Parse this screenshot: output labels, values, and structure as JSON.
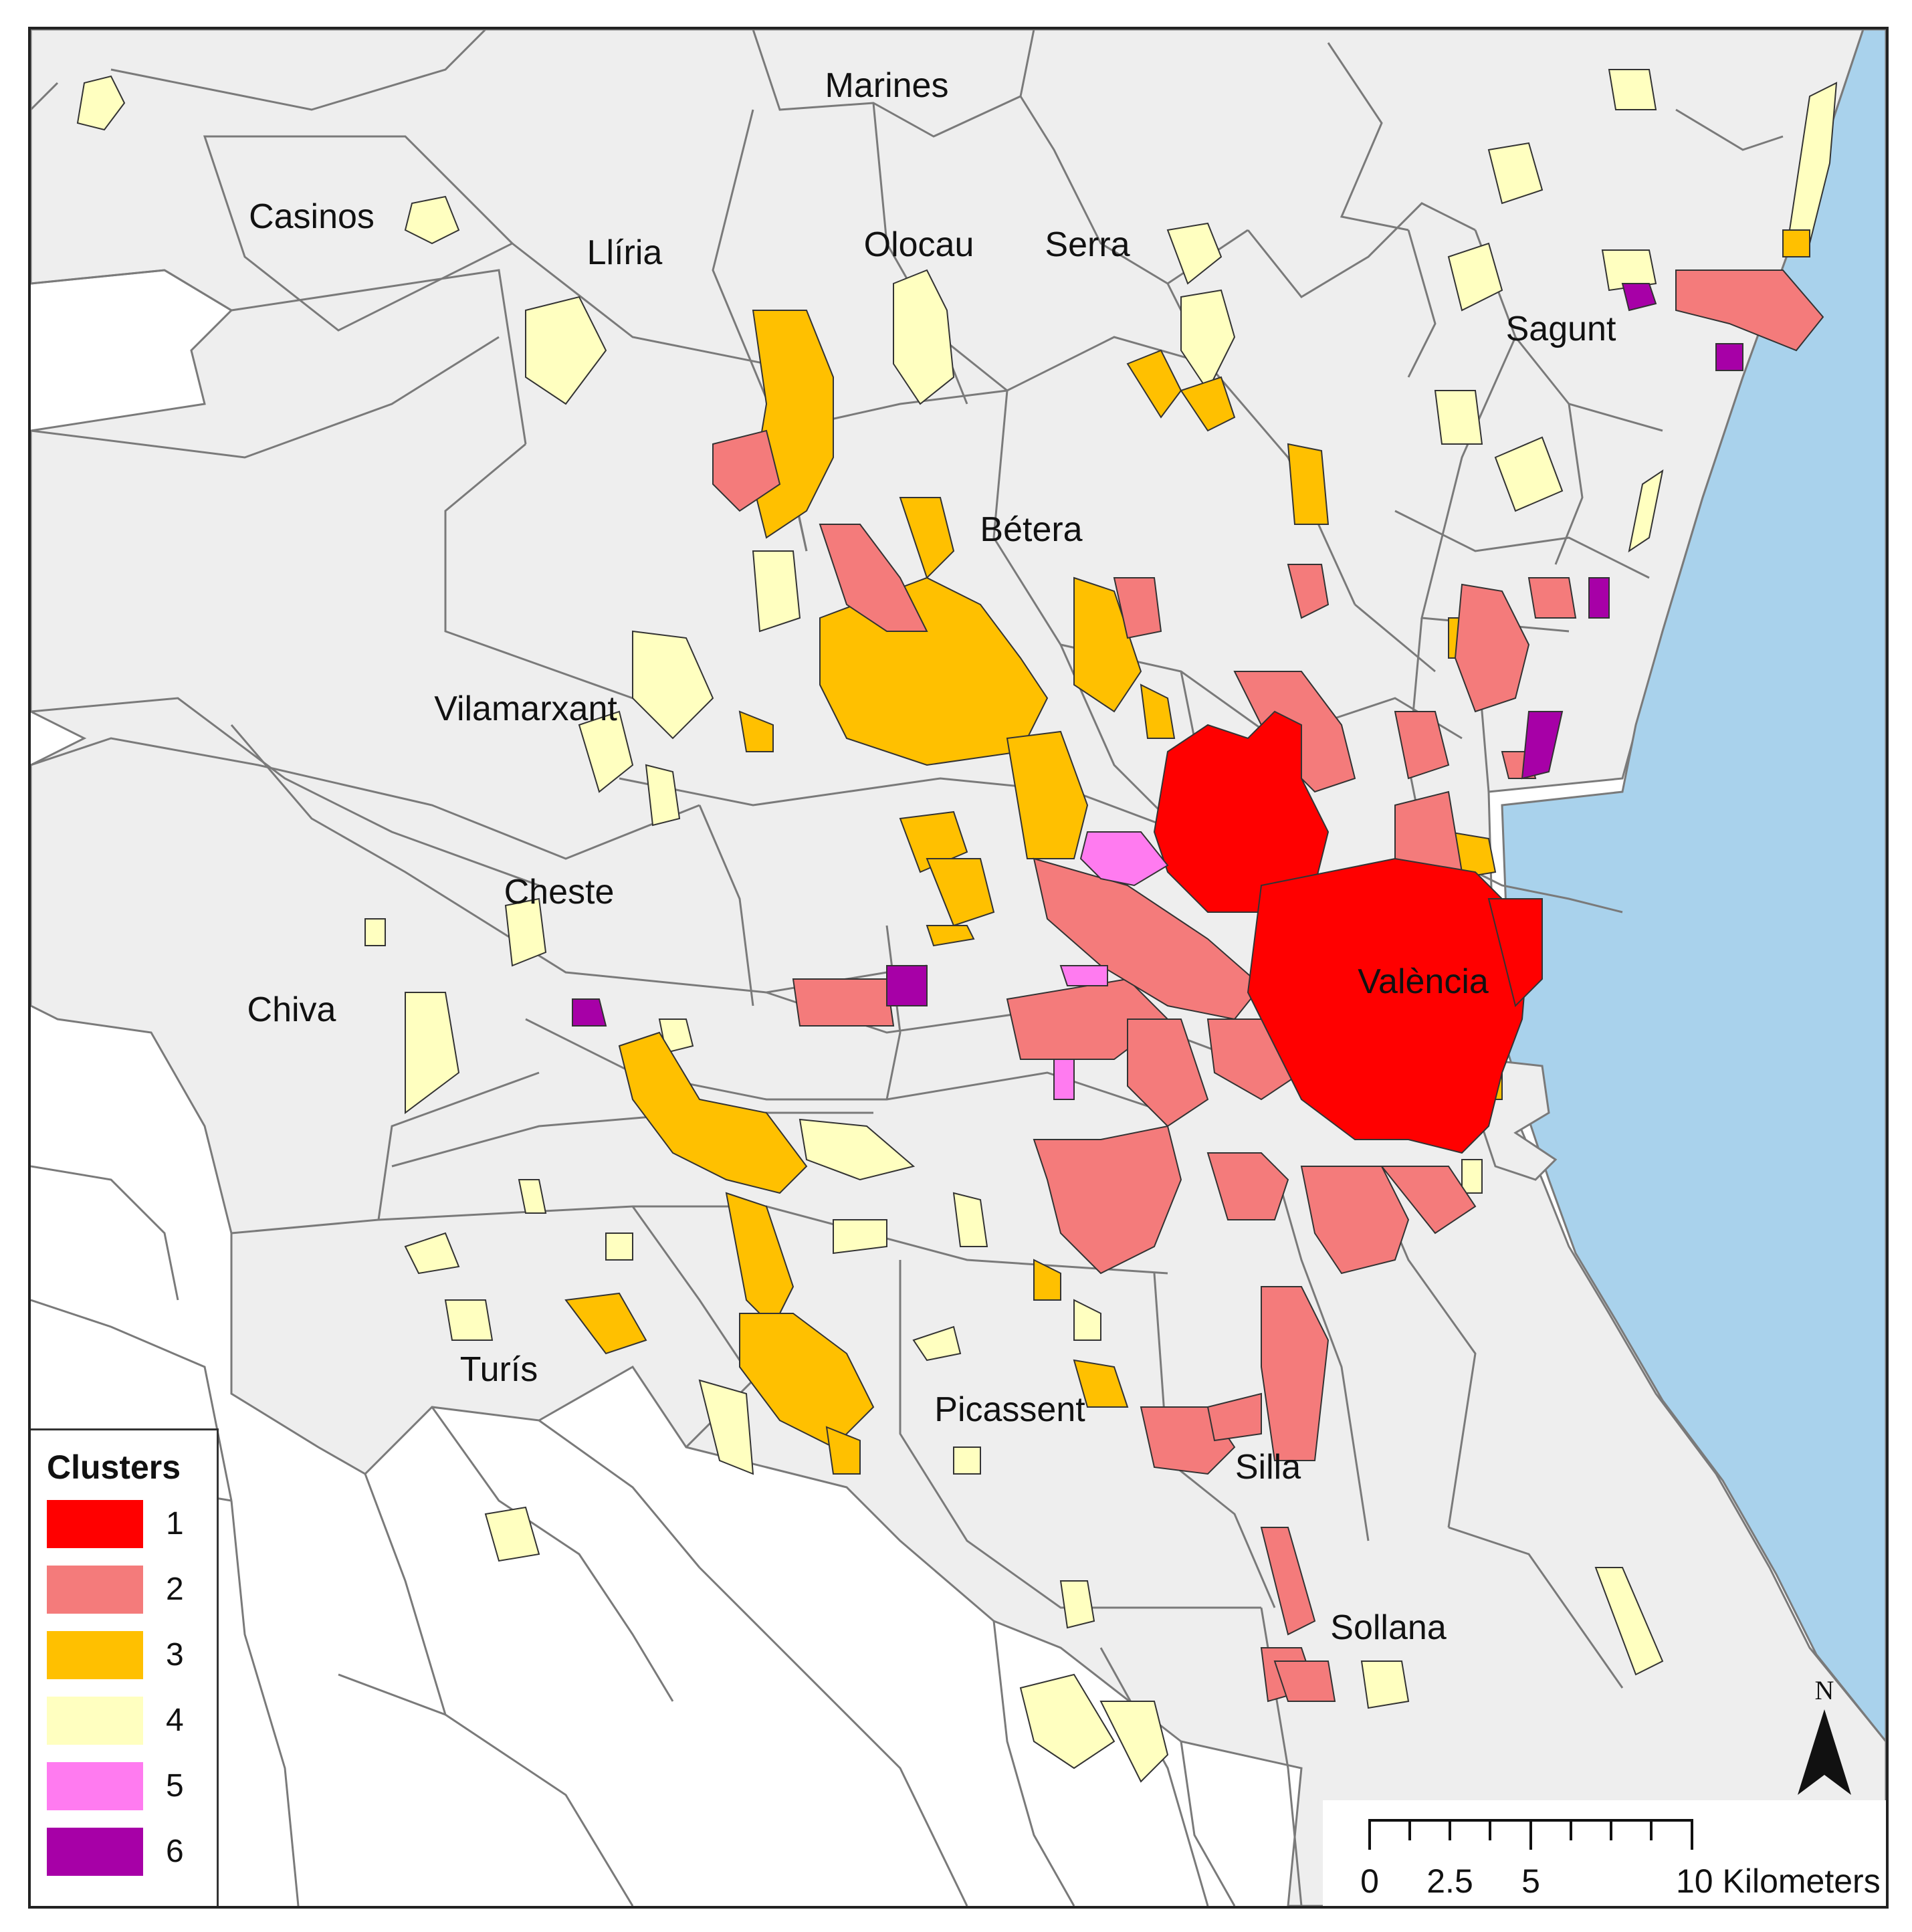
{
  "map": {
    "colors": {
      "sea": "#a9d2ec",
      "municipality_fill": "#eeeeee",
      "outside_fill": "#ffffff",
      "boundary": "#7a7a7a",
      "cluster_1": "#ff0000",
      "cluster_2": "#f47b7b",
      "cluster_3": "#ffc000",
      "cluster_4": "#ffffc0",
      "cluster_5": "#ff7bf0",
      "cluster_6": "#a700a7"
    },
    "towns": [
      {
        "id": "marines",
        "name": "Marines"
      },
      {
        "id": "casinos",
        "name": "Casinos"
      },
      {
        "id": "lliria",
        "name": "Llíria"
      },
      {
        "id": "olocau",
        "name": "Olocau"
      },
      {
        "id": "serra",
        "name": "Serra"
      },
      {
        "id": "sagunt",
        "name": "Sagunt"
      },
      {
        "id": "betera",
        "name": "Bétera"
      },
      {
        "id": "vilamarxant",
        "name": "Vilamarxant"
      },
      {
        "id": "cheste",
        "name": "Cheste"
      },
      {
        "id": "valencia",
        "name": "València"
      },
      {
        "id": "chiva",
        "name": "Chiva"
      },
      {
        "id": "turis",
        "name": "Turís"
      },
      {
        "id": "picassent",
        "name": "Picassent"
      },
      {
        "id": "silla",
        "name": "Silla"
      },
      {
        "id": "sollana",
        "name": "Sollana"
      }
    ]
  },
  "legend": {
    "title": "Clusters",
    "items": [
      {
        "label": "1",
        "color": "#ff0000"
      },
      {
        "label": "2",
        "color": "#f47b7b"
      },
      {
        "label": "3",
        "color": "#ffc000"
      },
      {
        "label": "4",
        "color": "#ffffc0"
      },
      {
        "label": "5",
        "color": "#ff7bf0"
      },
      {
        "label": "6",
        "color": "#a700a7"
      }
    ]
  },
  "scalebar": {
    "ticks": [
      "0",
      "2.5",
      "5",
      "10 Kilometers"
    ]
  },
  "north_arrow": {
    "label": "N"
  }
}
